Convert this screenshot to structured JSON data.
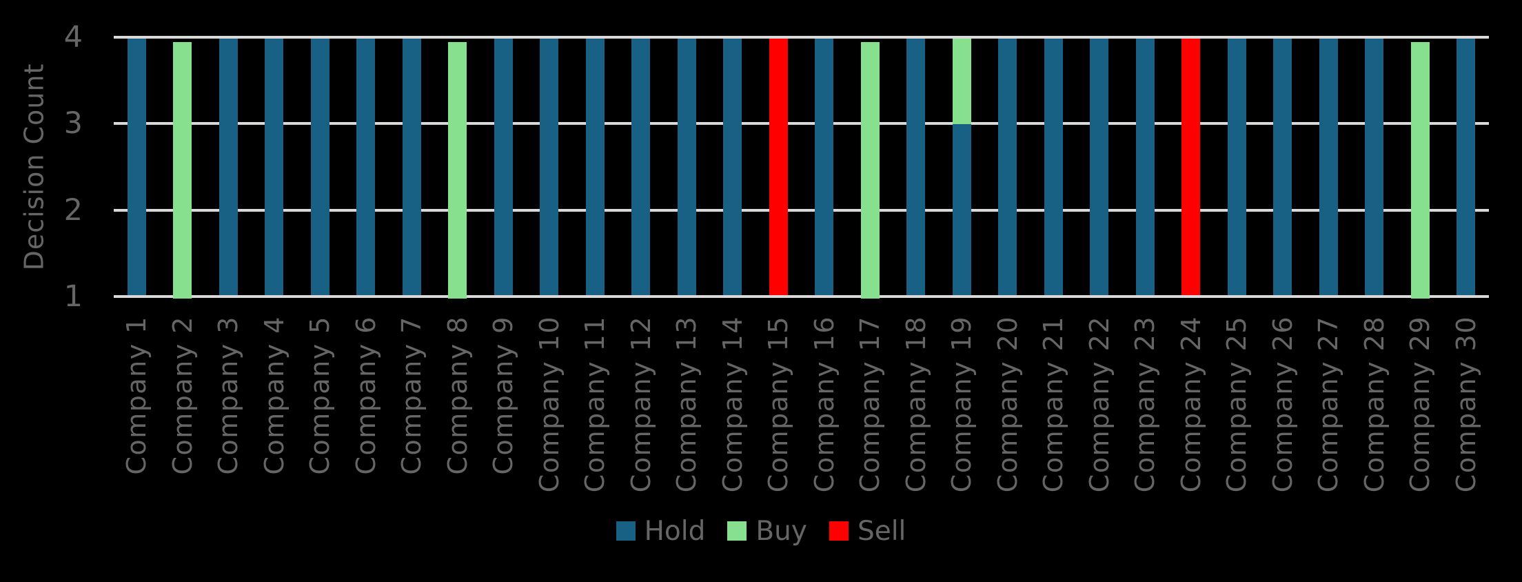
{
  "chart": {
    "y_axis": {
      "title": "Decision Count",
      "ticks": [
        "4",
        "3",
        "2",
        "1"
      ]
    },
    "legend": {
      "position": "bottom-center",
      "marker_shape": "square"
    }
  },
  "chart_data": {
    "type": "bar",
    "stacked": true,
    "orientation": "vertical",
    "title": "",
    "xlabel": "",
    "ylabel": "Decision Count",
    "ylim": [
      1,
      4
    ],
    "yticks": [
      1,
      2,
      3,
      4
    ],
    "grid": true,
    "legend_position": "bottom",
    "categories": [
      "Company 1",
      "Company 2",
      "Company 3",
      "Company 4",
      "Company 5",
      "Company 6",
      "Company 7",
      "Company 8",
      "Company 9",
      "Company 10",
      "Company 11",
      "Company 12",
      "Company 13",
      "Company 14",
      "Company 15",
      "Company 16",
      "Company 17",
      "Company 18",
      "Company 19",
      "Company 20",
      "Company 21",
      "Company 22",
      "Company 23",
      "Company 24",
      "Company 25",
      "Company 26",
      "Company 27",
      "Company 28",
      "Company 29",
      "Company 30"
    ],
    "series": [
      {
        "name": "Hold",
        "color": "#186185",
        "values": [
          4,
          0,
          4,
          4,
          4,
          4,
          4,
          0,
          4,
          4,
          4,
          4,
          4,
          4,
          0,
          4,
          0,
          4,
          3,
          4,
          4,
          4,
          4,
          0,
          4,
          4,
          4,
          4,
          0,
          4
        ]
      },
      {
        "name": "Buy",
        "color": "#87E08E",
        "values": [
          0,
          4,
          0,
          0,
          0,
          0,
          0,
          4,
          0,
          0,
          0,
          0,
          0,
          0,
          0,
          0,
          4,
          0,
          1,
          0,
          0,
          0,
          0,
          0,
          0,
          0,
          0,
          0,
          4,
          0
        ]
      },
      {
        "name": "Sell",
        "color": "#FF0000",
        "values": [
          0,
          0,
          0,
          0,
          0,
          0,
          0,
          0,
          0,
          0,
          0,
          0,
          0,
          0,
          4,
          0,
          0,
          0,
          0,
          0,
          0,
          0,
          0,
          4,
          0,
          0,
          0,
          0,
          0,
          0
        ]
      }
    ]
  },
  "colors": {
    "background": "#000000",
    "gridline": "#D9D9D9",
    "text": "#666666",
    "hold": "#186185",
    "buy": "#87E08E",
    "sell": "#FF0000"
  }
}
